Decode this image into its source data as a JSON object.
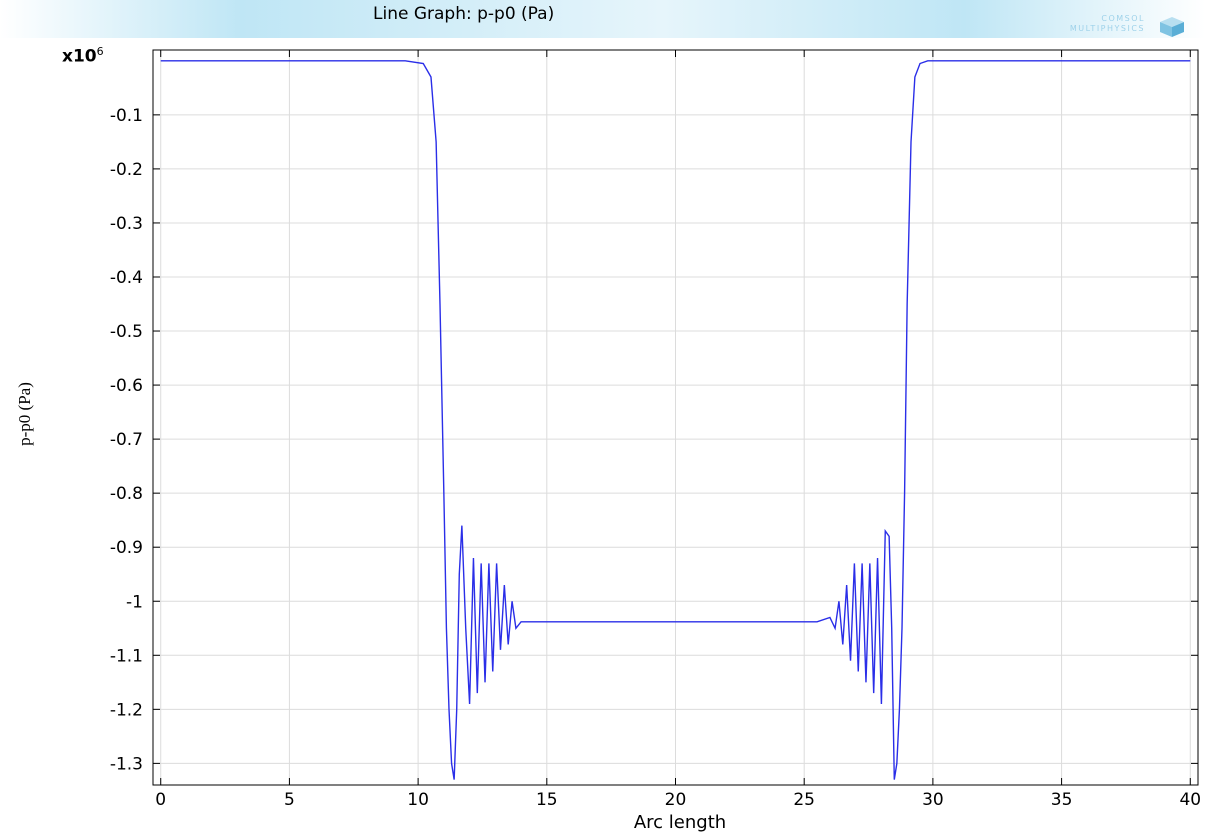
{
  "plot": {
    "title": "Line Graph: p-p0 (Pa)",
    "logo_line1": "COMSOL",
    "logo_line2": "MULTIPHYSICS",
    "y_multiplier_base": "x10",
    "y_multiplier_exp": "6"
  },
  "colors": {
    "line": "#2a2ee8",
    "grid": "#dcdcdc",
    "band": "#bfe6f5",
    "logo": "#9fd2ea"
  },
  "chart_data": {
    "type": "line",
    "title": "Line Graph: p-p0 (Pa)",
    "xlabel": "Arc length",
    "ylabel": "p-p0 (Pa)",
    "y_scale_factor": 1000000,
    "xlim": [
      -0.3,
      40.3
    ],
    "ylim": [
      -1.34,
      0.02
    ],
    "grid": true,
    "x_ticks": [
      0,
      5,
      10,
      15,
      20,
      25,
      30,
      35,
      40
    ],
    "x_tick_labels": [
      "0",
      "5",
      "10",
      "15",
      "20",
      "25",
      "30",
      "35",
      "40"
    ],
    "y_ticks": [
      -0.1,
      -0.2,
      -0.3,
      -0.4,
      -0.5,
      -0.6,
      -0.7,
      -0.8,
      -0.9,
      -1.0,
      -1.1,
      -1.2,
      -1.3
    ],
    "y_tick_labels": [
      "-0.1",
      "-0.2",
      "-0.3",
      "-0.4",
      "-0.5",
      "-0.6",
      "-0.7",
      "-0.8",
      "-0.9",
      "-1",
      "-1.1",
      "-1.2",
      "-1.3"
    ],
    "series": [
      {
        "x": [
          0,
          7.0,
          9.5,
          10.2,
          10.5,
          10.7,
          10.85,
          11.0,
          11.1,
          11.2,
          11.3,
          11.4,
          11.5,
          11.6,
          11.7,
          11.85,
          12.0,
          12.15,
          12.3,
          12.45,
          12.6,
          12.75,
          12.9,
          13.05,
          13.2,
          13.35,
          13.5,
          13.65,
          13.8,
          14.0,
          14.5,
          20,
          25.5,
          26.0,
          26.2,
          26.35,
          26.5,
          26.65,
          26.8,
          26.95,
          27.1,
          27.25,
          27.4,
          27.55,
          27.7,
          27.85,
          28.0,
          28.15,
          28.3,
          28.4,
          28.5,
          28.6,
          28.7,
          28.8,
          28.9,
          29.0,
          29.15,
          29.3,
          29.5,
          29.8,
          30.5,
          33.0,
          40
        ],
        "y": [
          0,
          0,
          0,
          -0.005,
          -0.03,
          -0.15,
          -0.45,
          -0.8,
          -1.05,
          -1.2,
          -1.3,
          -1.33,
          -1.2,
          -0.95,
          -0.86,
          -1.05,
          -1.19,
          -0.92,
          -1.17,
          -0.93,
          -1.15,
          -0.93,
          -1.13,
          -0.93,
          -1.09,
          -0.97,
          -1.08,
          -1.0,
          -1.05,
          -1.038,
          -1.038,
          -1.038,
          -1.038,
          -1.03,
          -1.05,
          -1.0,
          -1.08,
          -0.97,
          -1.11,
          -0.93,
          -1.13,
          -0.93,
          -1.15,
          -0.93,
          -1.17,
          -0.92,
          -1.19,
          -0.87,
          -0.88,
          -1.05,
          -1.33,
          -1.3,
          -1.2,
          -1.05,
          -0.8,
          -0.45,
          -0.15,
          -0.03,
          -0.005,
          0,
          0,
          0,
          0
        ]
      }
    ]
  }
}
